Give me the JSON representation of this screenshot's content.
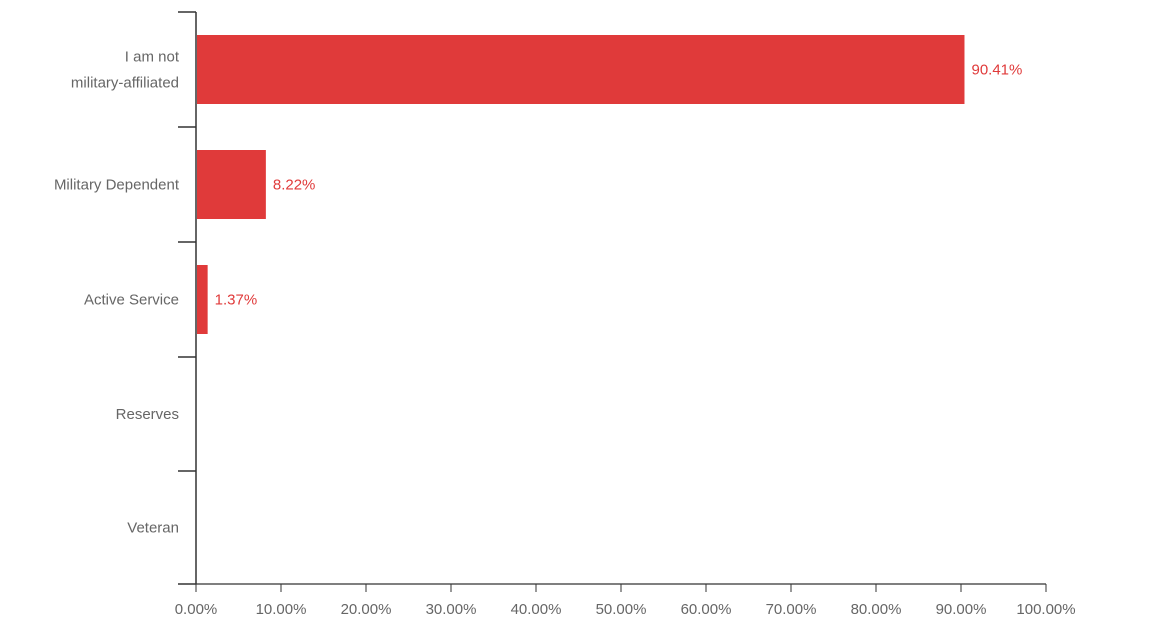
{
  "chart_data": {
    "type": "bar",
    "orientation": "horizontal",
    "categories": [
      [
        "I am not",
        "military-affiliated"
      ],
      [
        "Military Dependent"
      ],
      [
        "Active Service"
      ],
      [
        "Reserves"
      ],
      [
        "Veteran"
      ]
    ],
    "values": [
      90.41,
      8.22,
      1.37,
      null,
      null
    ],
    "value_labels": [
      "90.41%",
      "8.22%",
      "1.37%",
      "",
      ""
    ],
    "x_ticks": [
      "0.00%",
      "10.00%",
      "20.00%",
      "30.00%",
      "40.00%",
      "50.00%",
      "60.00%",
      "70.00%",
      "80.00%",
      "90.00%",
      "100.00%"
    ],
    "xlim": [
      0,
      100
    ],
    "title": "",
    "xlabel": "",
    "ylabel": "",
    "grid": false,
    "legend": "none",
    "colors": {
      "bar": "#e03a3a",
      "label": "#e03a3a",
      "axis": "#333333",
      "text": "#666666"
    }
  }
}
